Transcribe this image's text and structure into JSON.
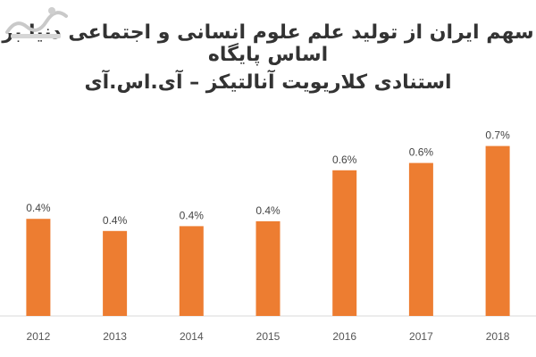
{
  "chart_data": {
    "type": "bar",
    "title_lines": [
      "سهم ایران از تولید علم علوم انسانی و اجتماعی دنیا بر اساس پایگاه",
      "استنادی کلاریویت آنالتیکز – آی.اس.آی"
    ],
    "categories": [
      "2012",
      "2013",
      "2014",
      "2015",
      "2016",
      "2017",
      "2018"
    ],
    "values": [
      0.4,
      0.35,
      0.37,
      0.39,
      0.6,
      0.63,
      0.7
    ],
    "data_labels": [
      "0.4%",
      "0.4%",
      "0.4%",
      "0.4%",
      "0.6%",
      "0.6%",
      "0.7%"
    ],
    "ylim": [
      0,
      0.75
    ],
    "bar_color": "#ED7D31",
    "grid": false,
    "legend": "none"
  }
}
